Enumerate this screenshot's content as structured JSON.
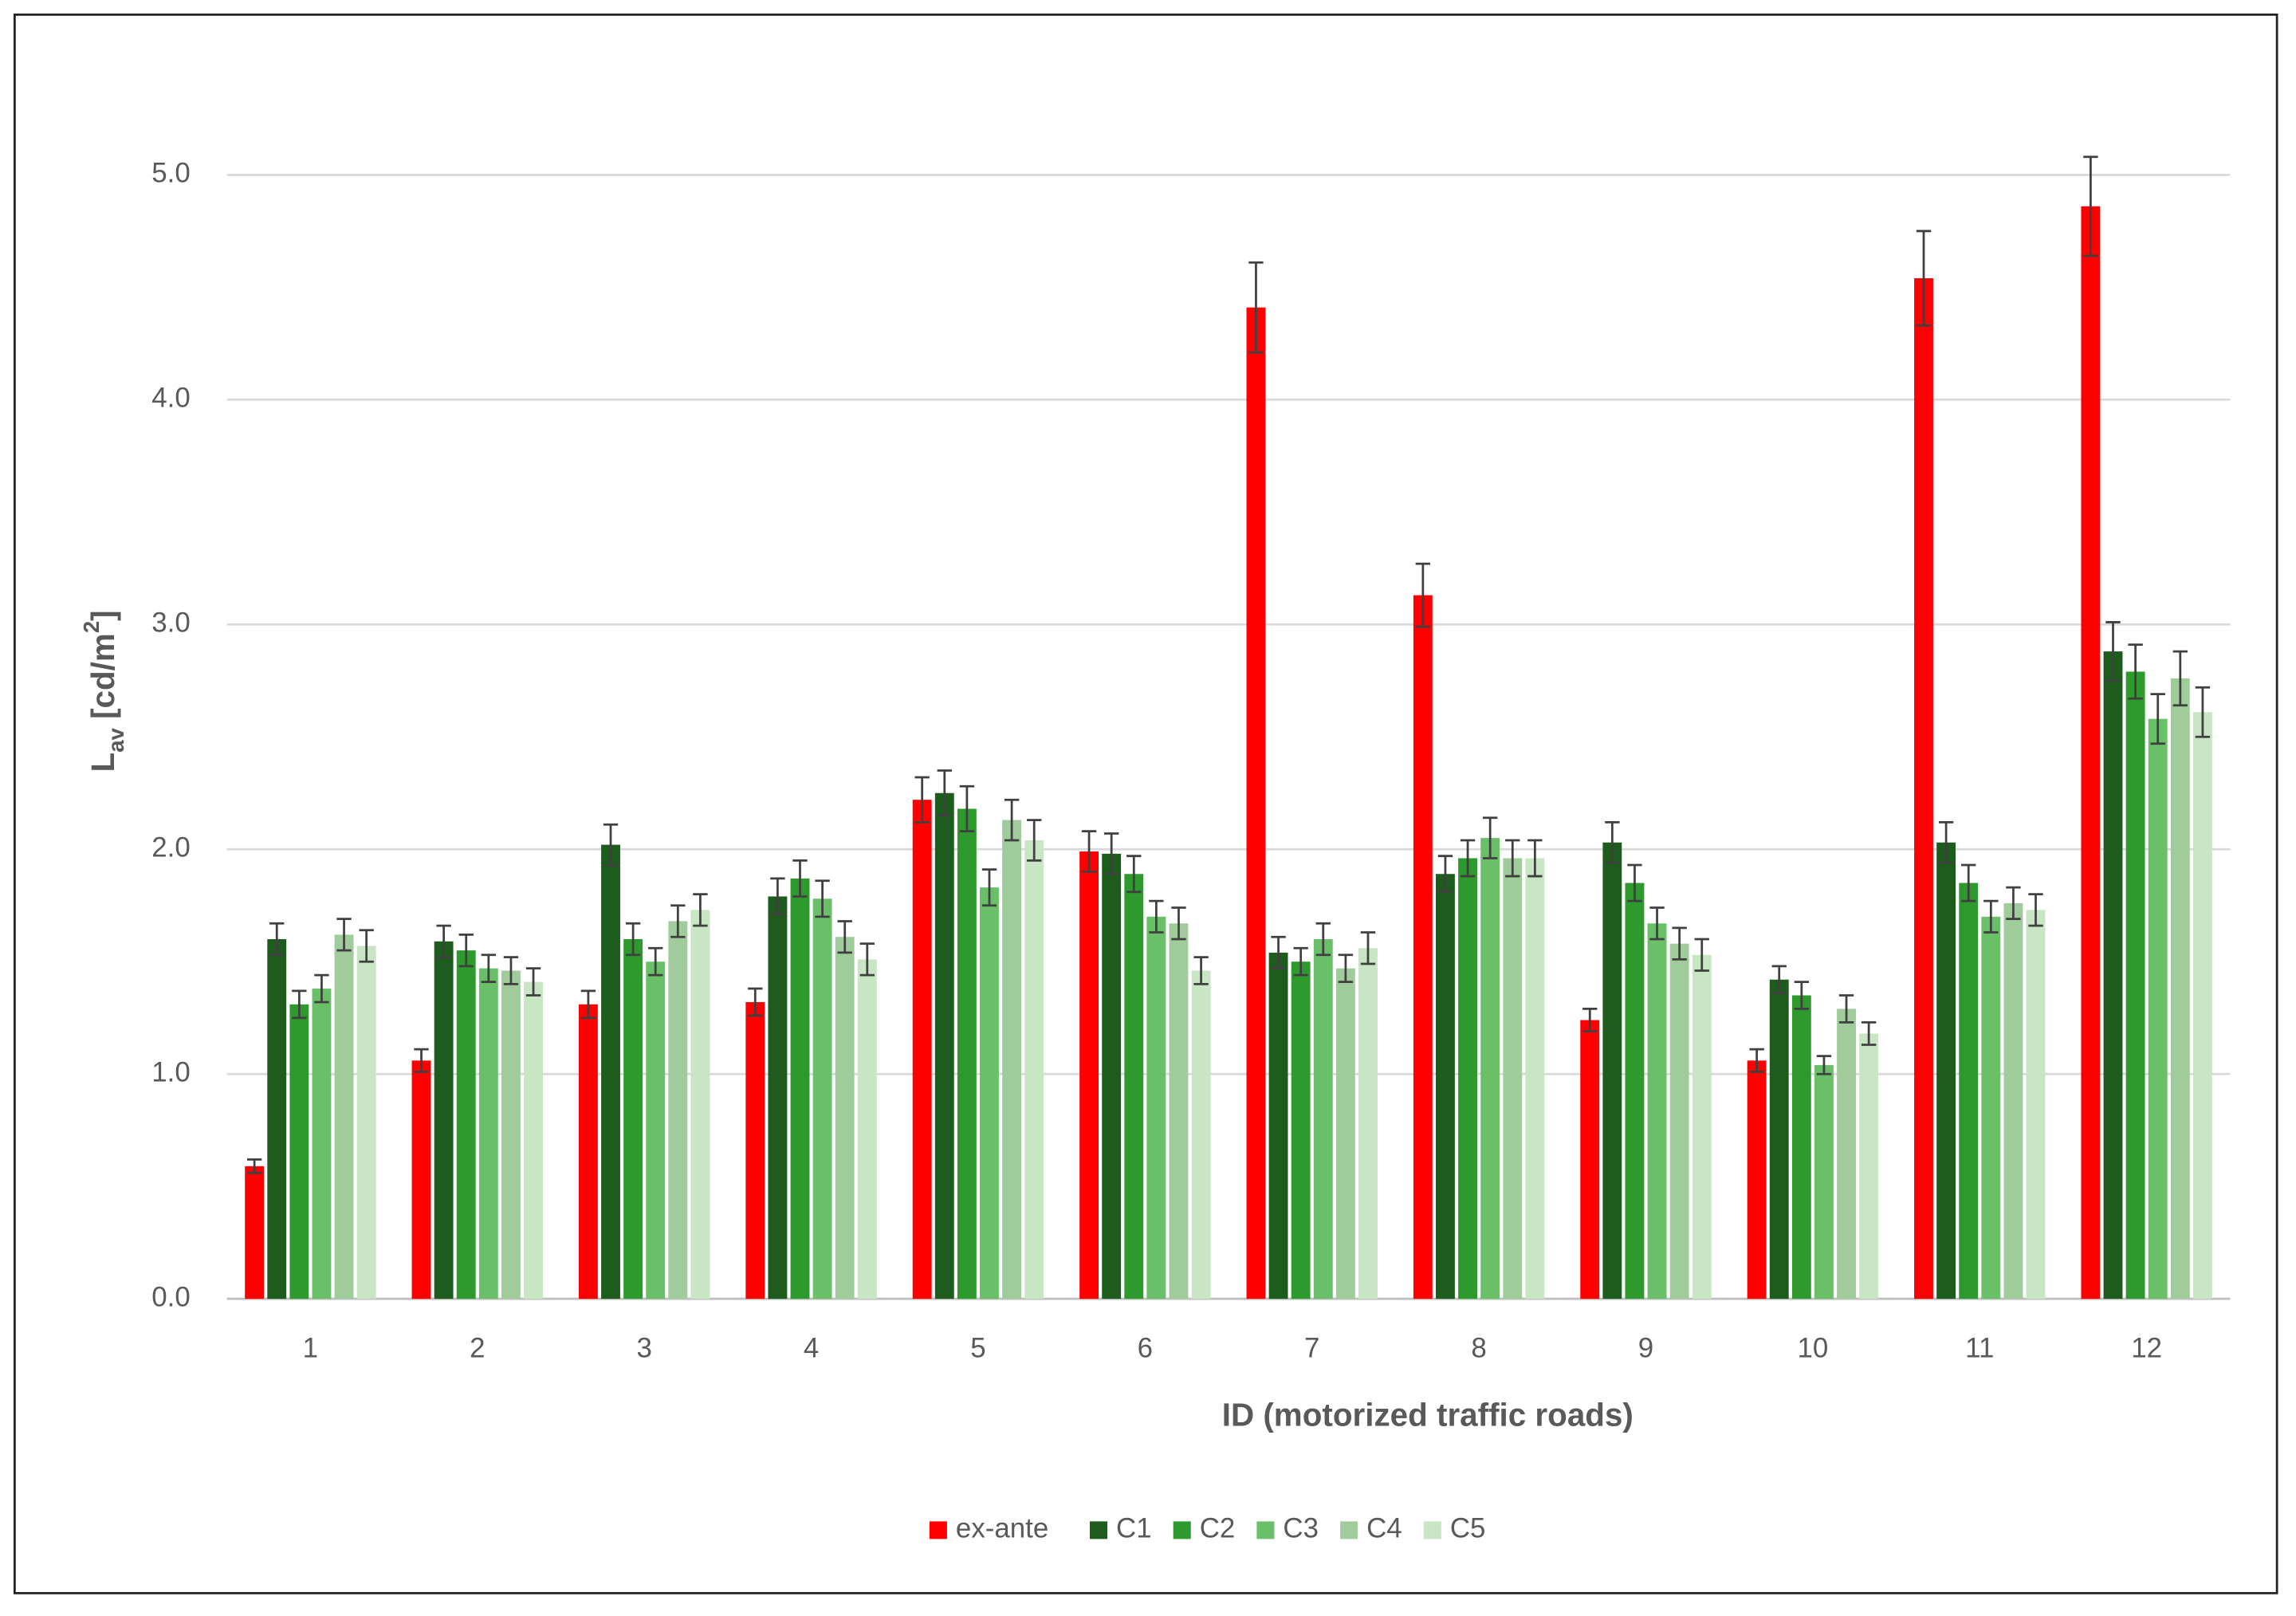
{
  "chart_data": {
    "type": "bar",
    "ylabel_parts": [
      "L",
      "av",
      " [cd/m",
      "2",
      "]"
    ],
    "xlabel": "ID (motorized traffic roads)",
    "categories": [
      "1",
      "2",
      "3",
      "4",
      "5",
      "6",
      "7",
      "8",
      "9",
      "10",
      "11",
      "12"
    ],
    "series": [
      {
        "name": "ex-ante",
        "color": "#ff0000",
        "values": [
          0.59,
          1.06,
          1.31,
          1.32,
          2.22,
          1.99,
          4.41,
          3.13,
          1.24,
          1.06,
          4.54,
          4.86
        ],
        "errors": [
          0.03,
          0.05,
          0.06,
          0.06,
          0.1,
          0.09,
          0.2,
          0.14,
          0.05,
          0.05,
          0.21,
          0.22
        ]
      },
      {
        "name": "C1",
        "color": "#1e5c1e",
        "values": [
          1.6,
          1.59,
          2.02,
          1.79,
          2.25,
          1.98,
          1.54,
          1.89,
          2.03,
          1.42,
          2.03,
          2.88
        ],
        "errors": [
          0.07,
          0.07,
          0.09,
          0.08,
          0.1,
          0.09,
          0.07,
          0.08,
          0.09,
          0.06,
          0.09,
          0.13
        ]
      },
      {
        "name": "C2",
        "color": "#2e9a2e",
        "values": [
          1.31,
          1.55,
          1.6,
          1.87,
          2.18,
          1.89,
          1.5,
          1.96,
          1.85,
          1.35,
          1.85,
          2.79
        ],
        "errors": [
          0.06,
          0.07,
          0.07,
          0.08,
          0.1,
          0.08,
          0.06,
          0.08,
          0.08,
          0.06,
          0.08,
          0.12
        ]
      },
      {
        "name": "C3",
        "color": "#6abf69",
        "values": [
          1.38,
          1.47,
          1.5,
          1.78,
          1.83,
          1.7,
          1.6,
          2.05,
          1.67,
          1.04,
          1.7,
          2.58
        ],
        "errors": [
          0.06,
          0.06,
          0.06,
          0.08,
          0.08,
          0.07,
          0.07,
          0.09,
          0.07,
          0.04,
          0.07,
          0.11
        ]
      },
      {
        "name": "C4",
        "color": "#9fcc9a",
        "values": [
          1.62,
          1.46,
          1.68,
          1.61,
          2.13,
          1.67,
          1.47,
          1.96,
          1.58,
          1.29,
          1.76,
          2.76
        ],
        "errors": [
          0.07,
          0.06,
          0.07,
          0.07,
          0.09,
          0.07,
          0.06,
          0.08,
          0.07,
          0.06,
          0.07,
          0.12
        ]
      },
      {
        "name": "C5",
        "color": "#c8e6c3",
        "values": [
          1.57,
          1.41,
          1.73,
          1.51,
          2.04,
          1.46,
          1.56,
          1.96,
          1.53,
          1.18,
          1.73,
          2.61
        ],
        "errors": [
          0.07,
          0.06,
          0.07,
          0.07,
          0.09,
          0.06,
          0.07,
          0.08,
          0.07,
          0.05,
          0.07,
          0.11
        ]
      }
    ],
    "ylim": [
      0,
      5.4
    ],
    "yticks": [
      {
        "value": 0,
        "label": "0.0"
      },
      {
        "value": 1,
        "label": "1.0"
      },
      {
        "value": 2,
        "label": "2.0"
      },
      {
        "value": 3,
        "label": "3.0"
      },
      {
        "value": 4,
        "label": "4.0"
      },
      {
        "value": 5,
        "label": "5.0"
      }
    ],
    "grid": true,
    "legend": "bottom"
  }
}
